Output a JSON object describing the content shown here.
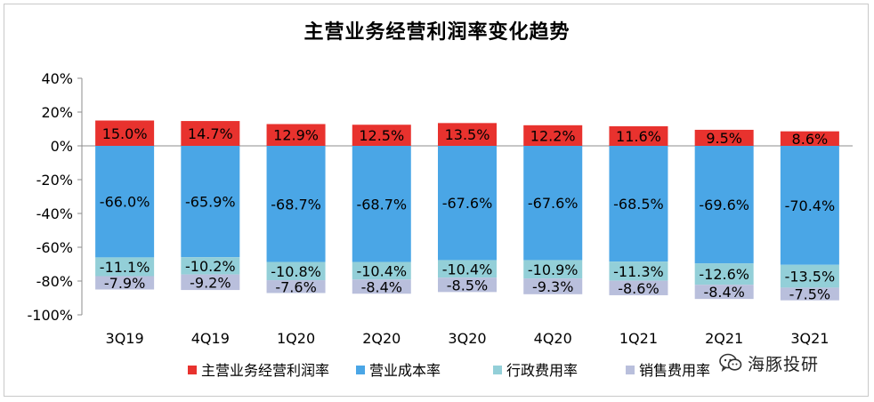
{
  "chart_data": {
    "type": "bar",
    "title": "主营业务经营利润率变化趋势",
    "categories": [
      "3Q19",
      "4Q19",
      "1Q20",
      "2Q20",
      "3Q20",
      "4Q20",
      "1Q21",
      "2Q21",
      "3Q21"
    ],
    "ylim": [
      -100,
      40
    ],
    "yticks": [
      "40%",
      "20%",
      "0%",
      "-20%",
      "-40%",
      "-60%",
      "-80%",
      "-100%"
    ],
    "ytick_values": [
      40,
      20,
      0,
      -20,
      -40,
      -60,
      -80,
      -100
    ],
    "stacked": true,
    "legend_position": "bottom",
    "series": [
      {
        "name": "主营业务经营利润率",
        "color": "#e8322e",
        "values": [
          15.0,
          14.7,
          12.9,
          12.5,
          13.5,
          12.2,
          11.6,
          9.5,
          8.6
        ],
        "labels": [
          "15.0%",
          "14.7%",
          "12.9%",
          "12.5%",
          "13.5%",
          "12.2%",
          "11.6%",
          "9.5%",
          "8.6%"
        ]
      },
      {
        "name": "营业成本率",
        "color": "#4aa6e6",
        "values": [
          -66.0,
          -65.9,
          -68.7,
          -68.7,
          -67.6,
          -67.6,
          -68.5,
          -69.6,
          -70.4
        ],
        "labels": [
          "-66.0%",
          "-65.9%",
          "-68.7%",
          "-68.7%",
          "-67.6%",
          "-67.6%",
          "-68.5%",
          "-69.6%",
          "-70.4%"
        ]
      },
      {
        "name": "行政费用率",
        "color": "#93cfd8",
        "values": [
          -11.1,
          -10.2,
          -10.8,
          -10.4,
          -10.4,
          -10.9,
          -11.3,
          -12.6,
          -13.5
        ],
        "labels": [
          "-11.1%",
          "-10.2%",
          "-10.8%",
          "-10.4%",
          "-10.4%",
          "-10.9%",
          "-11.3%",
          "-12.6%",
          "-13.5%"
        ]
      },
      {
        "name": "销售费用率",
        "color": "#b9bfdc",
        "values": [
          -7.9,
          -9.2,
          -7.6,
          -8.4,
          -8.5,
          -9.3,
          -8.6,
          -8.4,
          -7.5
        ],
        "labels": [
          "-7.9%",
          "-9.2%",
          "-7.6%",
          "-8.4%",
          "-8.5%",
          "-9.3%",
          "-8.6%",
          "-8.4%",
          "-7.5%"
        ]
      }
    ]
  },
  "brand": {
    "text": "海豚投研",
    "icon": "wechat-icon"
  }
}
